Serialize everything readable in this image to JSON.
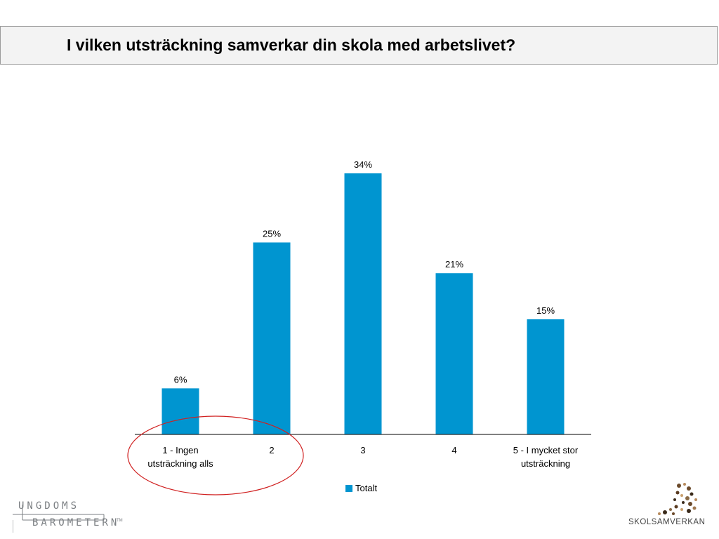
{
  "header": {
    "title": "I vilken utsträckning samverkar din skola med arbetslivet?"
  },
  "chart_data": {
    "type": "bar",
    "categories": [
      "1 - Ingen\nutsträckning alls",
      "2",
      "3",
      "4",
      "5 - I mycket stor\nutsträckning"
    ],
    "series": [
      {
        "name": "Totalt",
        "values": [
          6,
          25,
          34,
          21,
          15
        ],
        "color": "#0095d0"
      }
    ],
    "data_labels": [
      "6%",
      "25%",
      "34%",
      "21%",
      "15%"
    ],
    "unit": "%",
    "ylim": [
      0,
      40
    ],
    "grid": false,
    "legend_position": "bottom",
    "annotation": {
      "shape": "ellipse",
      "color": "#d02020",
      "target_category_index": 0
    }
  },
  "logos": {
    "left": {
      "line1": "UNGDOMS",
      "line2": "BAROMETERN",
      "tm": "TM"
    },
    "right": {
      "text": "SKOLSAMVERKAN"
    }
  }
}
